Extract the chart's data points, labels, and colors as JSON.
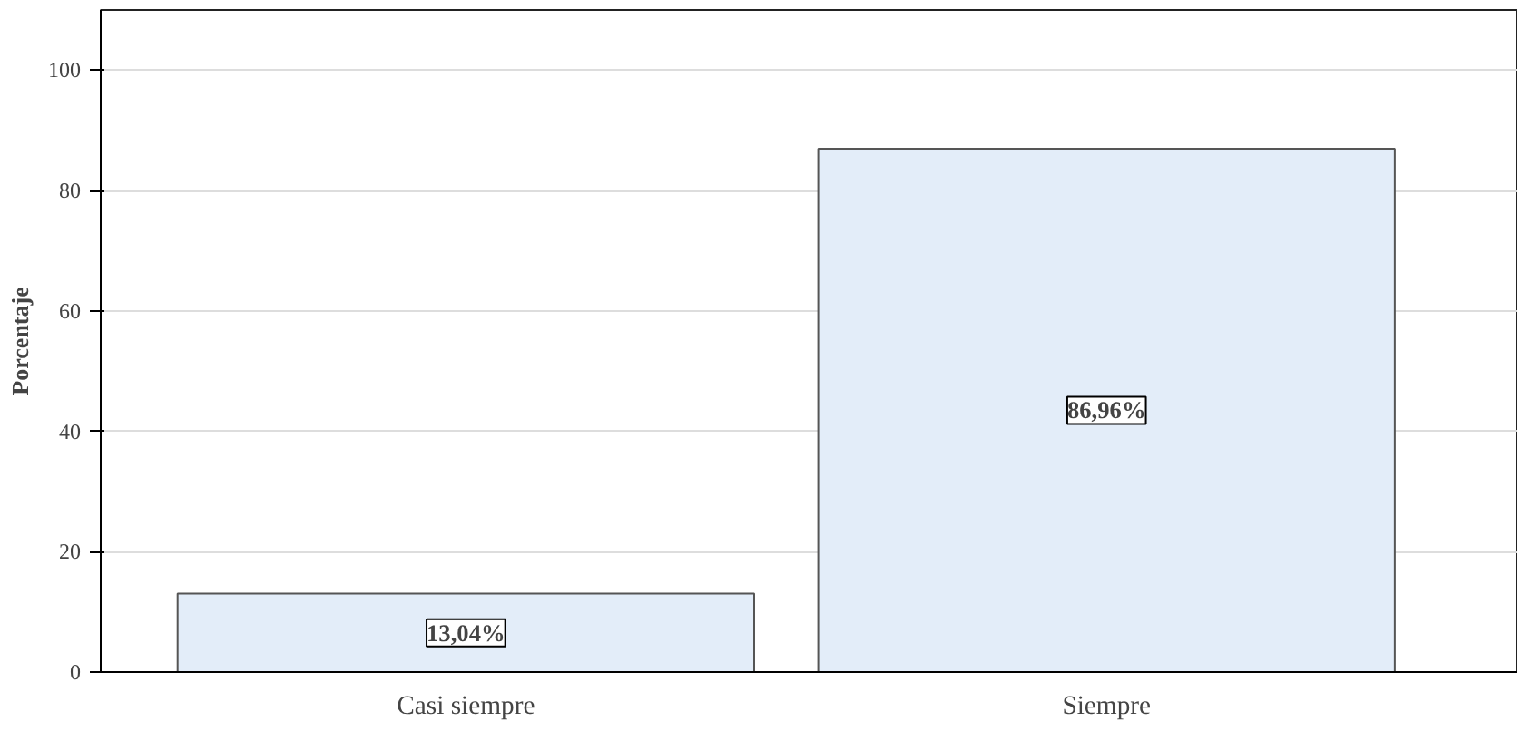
{
  "chart_data": {
    "type": "bar",
    "ylabel": "Porcentaje",
    "categories": [
      "Casi siempre",
      "Siempre"
    ],
    "values": [
      13.04,
      86.96
    ],
    "value_labels": [
      "13,04%",
      "86,96%"
    ],
    "color": "#e3edf9",
    "ylim": [
      0,
      110
    ],
    "yticks": [
      0,
      20,
      40,
      60,
      80,
      100
    ],
    "grid": "y"
  }
}
